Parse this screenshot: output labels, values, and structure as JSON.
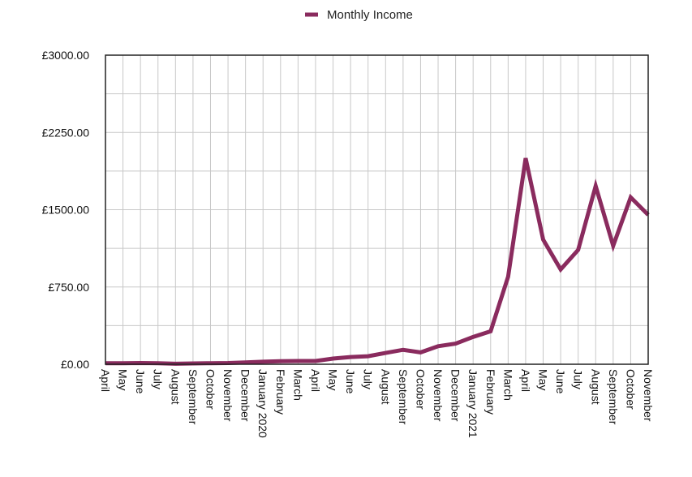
{
  "chart_data": {
    "type": "line",
    "title": "",
    "xlabel": "",
    "ylabel": "",
    "legend": {
      "position": "top-center",
      "entries": [
        "Monthly Income"
      ]
    },
    "grid": true,
    "ylim": [
      0,
      3000
    ],
    "yticks": [
      "£0.00",
      "£750.00",
      "£1500.00",
      "£2250.00",
      "£3000.00"
    ],
    "categories": [
      "April",
      "May",
      "June",
      "July",
      "August",
      "September",
      "October",
      "November",
      "December",
      "January 2020",
      "February",
      "March",
      "April",
      "May",
      "June",
      "July",
      "August",
      "September",
      "October",
      "November",
      "December",
      "January 2021",
      "February",
      "March",
      "April",
      "May",
      "June",
      "July",
      "August",
      "September",
      "October",
      "November"
    ],
    "series": [
      {
        "name": "Monthly Income",
        "color": "#8a2b5e",
        "values": [
          10,
          10,
          12,
          10,
          5,
          8,
          10,
          12,
          18,
          25,
          30,
          32,
          32,
          55,
          70,
          78,
          110,
          140,
          115,
          175,
          200,
          265,
          320,
          850,
          2000,
          1210,
          920,
          1110,
          1730,
          1150,
          1620,
          1450
        ]
      }
    ]
  }
}
